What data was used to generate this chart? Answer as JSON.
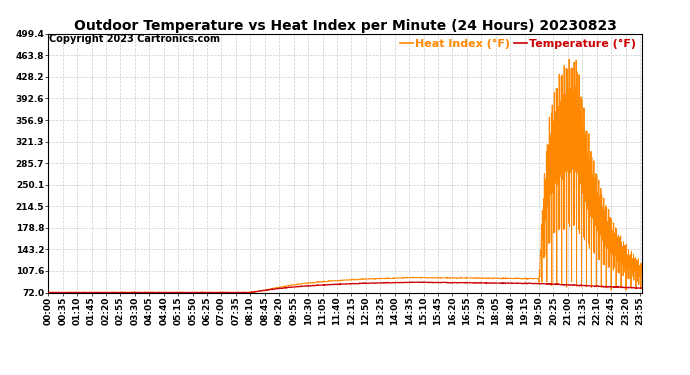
{
  "title": "Outdoor Temperature vs Heat Index per Minute (24 Hours) 20230823",
  "copyright": "Copyright 2023 Cartronics.com",
  "legend_heat_index": "Heat Index (°F)",
  "legend_temperature": "Temperature (°F)",
  "temperature_color": "#cc0000",
  "heat_index_color": "#ff8800",
  "background_color": "#ffffff",
  "grid_color": "#cccccc",
  "yticks": [
    72.0,
    107.6,
    143.2,
    178.8,
    214.5,
    250.1,
    285.7,
    321.3,
    356.9,
    392.6,
    428.2,
    463.8,
    499.4
  ],
  "ymin": 72.0,
  "ymax": 499.4,
  "title_fontsize": 10,
  "copyright_fontsize": 7,
  "tick_fontsize": 6.5,
  "legend_fontsize": 8
}
